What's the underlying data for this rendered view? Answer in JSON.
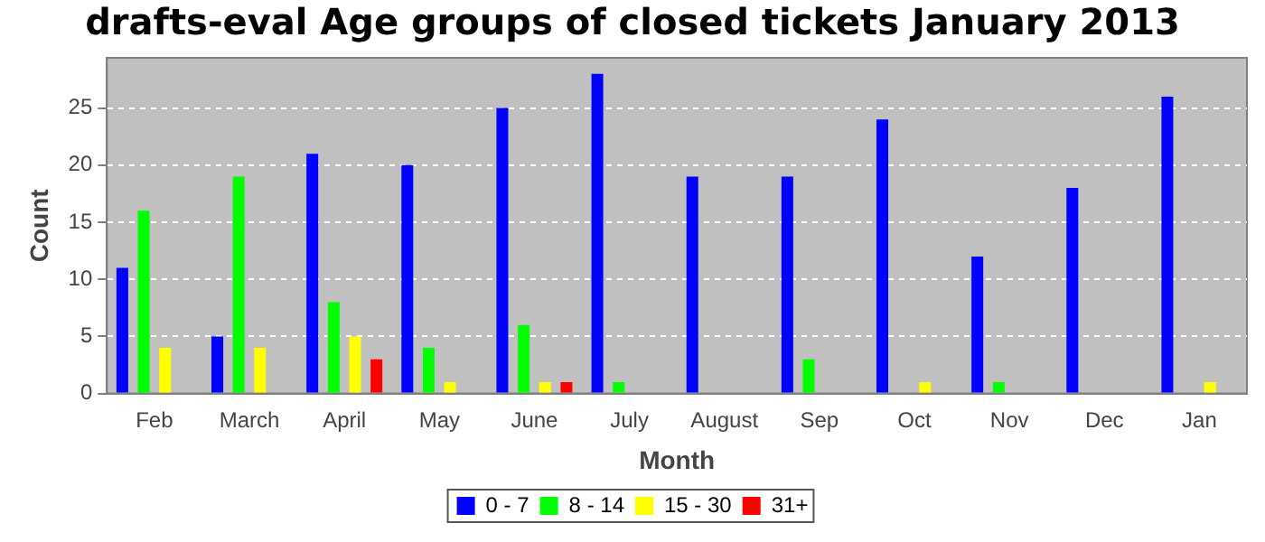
{
  "chart_data": {
    "type": "bar",
    "title": "drafts-eval Age groups of closed tickets January 2013",
    "xlabel": "Month",
    "ylabel": "Count",
    "categories": [
      "Feb",
      "March",
      "April",
      "May",
      "June",
      "July",
      "August",
      "Sep",
      "Oct",
      "Nov",
      "Dec",
      "Jan"
    ],
    "series": [
      {
        "name": "0 - 7",
        "color": "#0000ff",
        "values": [
          11,
          5,
          21,
          20,
          25,
          28,
          19,
          19,
          24,
          12,
          18,
          26
        ]
      },
      {
        "name": "8 - 14",
        "color": "#00ff00",
        "values": [
          16,
          19,
          8,
          4,
          6,
          1,
          0,
          3,
          0,
          1,
          0,
          0
        ]
      },
      {
        "name": "15 - 30",
        "color": "#ffff00",
        "values": [
          4,
          4,
          5,
          1,
          1,
          0,
          0,
          0,
          1,
          0,
          0,
          1
        ]
      },
      {
        "name": "31+",
        "color": "#ff0000",
        "values": [
          0,
          0,
          3,
          0,
          1,
          0,
          0,
          0,
          0,
          0,
          0,
          0
        ]
      }
    ],
    "ylim": [
      0,
      29.4
    ],
    "yticks": [
      0,
      5,
      10,
      15,
      20,
      25
    ],
    "grid": "y",
    "legend": "bottom"
  }
}
